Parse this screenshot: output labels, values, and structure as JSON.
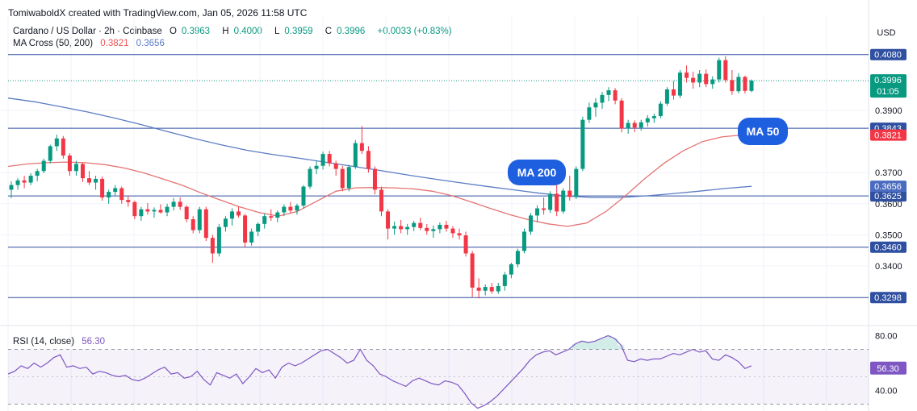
{
  "header": {
    "credit": "TomiwaboldX created with TradingView.com, Jan 05, 2026 11:58 UTC"
  },
  "legend": {
    "symbol": "Cardano / US Dollar · 2h · Coinbase",
    "open_label": "O",
    "open": "0.3963",
    "high_label": "H",
    "high": "0.4000",
    "low_label": "L",
    "low": "0.3959",
    "close_label": "C",
    "close": "0.3996",
    "change": "+0.0033 (+0.83%)",
    "ma_label": "MA Cross (50, 200)",
    "ma50_value": "0.3821",
    "ma200_value": "0.3656",
    "rsi_label": "RSI (14, close)",
    "rsi_value": "56.30"
  },
  "chart_data": {
    "type": "candlestick",
    "currency": "USD",
    "price_axis_ticks": [
      "0.3400",
      "0.3500",
      "0.3600",
      "0.3700",
      "0.3900"
    ],
    "price_range": [
      0.327,
      0.41
    ],
    "horizontal_levels": [
      {
        "price": 0.408,
        "label": "0.4080"
      },
      {
        "price": 0.3843,
        "label": "0.3843"
      },
      {
        "price": 0.3625,
        "label": "0.3625"
      },
      {
        "price": 0.346,
        "label": "0.3460"
      },
      {
        "price": 0.3298,
        "label": "0.3298"
      }
    ],
    "last_price": {
      "value": 0.3996,
      "label": "0.3996",
      "countdown": "01:05"
    },
    "ma50_badge": {
      "value": 0.3821,
      "label": "0.3821"
    },
    "ma200_badge": {
      "value": 0.3656,
      "label": "0.3656"
    },
    "annotations": [
      {
        "text": "MA 200"
      },
      {
        "text": "MA 50"
      }
    ],
    "candles": [
      [
        0.3645,
        0.3672,
        0.3618,
        0.366
      ],
      [
        0.366,
        0.3682,
        0.3645,
        0.3675
      ],
      [
        0.3675,
        0.369,
        0.365,
        0.3668
      ],
      [
        0.3668,
        0.3698,
        0.366,
        0.369
      ],
      [
        0.369,
        0.3712,
        0.3672,
        0.3705
      ],
      [
        0.3705,
        0.3745,
        0.3698,
        0.3738
      ],
      [
        0.3738,
        0.379,
        0.373,
        0.3785
      ],
      [
        0.3785,
        0.3822,
        0.377,
        0.381
      ],
      [
        0.381,
        0.3818,
        0.3745,
        0.3755
      ],
      [
        0.3755,
        0.3762,
        0.369,
        0.3705
      ],
      [
        0.3705,
        0.3738,
        0.369,
        0.3728
      ],
      [
        0.3728,
        0.3732,
        0.367,
        0.3682
      ],
      [
        0.3682,
        0.3705,
        0.366,
        0.3668
      ],
      [
        0.3668,
        0.369,
        0.3645,
        0.368
      ],
      [
        0.368,
        0.3688,
        0.361,
        0.362
      ],
      [
        0.362,
        0.3645,
        0.36,
        0.3638
      ],
      [
        0.3638,
        0.366,
        0.3625,
        0.365
      ],
      [
        0.365,
        0.3655,
        0.36,
        0.3612
      ],
      [
        0.3612,
        0.3625,
        0.359,
        0.3605
      ],
      [
        0.3605,
        0.361,
        0.355,
        0.356
      ],
      [
        0.356,
        0.359,
        0.3545,
        0.3582
      ],
      [
        0.3582,
        0.3602,
        0.3565,
        0.3575
      ],
      [
        0.3575,
        0.3588,
        0.3555,
        0.358
      ],
      [
        0.358,
        0.3598,
        0.3568,
        0.3572
      ],
      [
        0.3572,
        0.36,
        0.356,
        0.359
      ],
      [
        0.359,
        0.3618,
        0.3578,
        0.3606
      ],
      [
        0.3606,
        0.362,
        0.358,
        0.359
      ],
      [
        0.359,
        0.3595,
        0.354,
        0.355
      ],
      [
        0.355,
        0.356,
        0.3505,
        0.3515
      ],
      [
        0.3515,
        0.359,
        0.3505,
        0.3582
      ],
      [
        0.3582,
        0.359,
        0.348,
        0.349
      ],
      [
        0.349,
        0.35,
        0.341,
        0.344
      ],
      [
        0.344,
        0.3535,
        0.343,
        0.3525
      ],
      [
        0.3525,
        0.356,
        0.351,
        0.3552
      ],
      [
        0.3552,
        0.3585,
        0.353,
        0.3575
      ],
      [
        0.3575,
        0.359,
        0.3555,
        0.3562
      ],
      [
        0.3562,
        0.3568,
        0.346,
        0.3475
      ],
      [
        0.3475,
        0.352,
        0.3465,
        0.351
      ],
      [
        0.351,
        0.354,
        0.3495,
        0.3535
      ],
      [
        0.3535,
        0.3568,
        0.352,
        0.356
      ],
      [
        0.356,
        0.3582,
        0.3545,
        0.3555
      ],
      [
        0.3555,
        0.3578,
        0.354,
        0.3572
      ],
      [
        0.3572,
        0.3598,
        0.356,
        0.359
      ],
      [
        0.359,
        0.3605,
        0.357,
        0.3578
      ],
      [
        0.3578,
        0.36,
        0.3565,
        0.3594
      ],
      [
        0.3594,
        0.366,
        0.3585,
        0.3655
      ],
      [
        0.3655,
        0.372,
        0.3648,
        0.3712
      ],
      [
        0.3712,
        0.3738,
        0.3695,
        0.3722
      ],
      [
        0.3722,
        0.3768,
        0.371,
        0.376
      ],
      [
        0.376,
        0.377,
        0.372,
        0.373
      ],
      [
        0.373,
        0.3738,
        0.369,
        0.3712
      ],
      [
        0.3712,
        0.3722,
        0.364,
        0.365
      ],
      [
        0.365,
        0.3725,
        0.364,
        0.3718
      ],
      [
        0.3718,
        0.3805,
        0.3712,
        0.3795
      ],
      [
        0.3795,
        0.385,
        0.376,
        0.377
      ],
      [
        0.377,
        0.3785,
        0.37,
        0.3712
      ],
      [
        0.3712,
        0.372,
        0.363,
        0.3645
      ],
      [
        0.3645,
        0.3655,
        0.356,
        0.3575
      ],
      [
        0.3575,
        0.3582,
        0.3485,
        0.352
      ],
      [
        0.352,
        0.3542,
        0.35,
        0.3528
      ],
      [
        0.3528,
        0.3548,
        0.3505,
        0.3518
      ],
      [
        0.3518,
        0.3535,
        0.35,
        0.3525
      ],
      [
        0.3525,
        0.3545,
        0.3512,
        0.3538
      ],
      [
        0.3538,
        0.3555,
        0.3515,
        0.3522
      ],
      [
        0.3522,
        0.3535,
        0.35,
        0.3512
      ],
      [
        0.3512,
        0.353,
        0.349,
        0.3518
      ],
      [
        0.3518,
        0.354,
        0.3505,
        0.3532
      ],
      [
        0.3532,
        0.3545,
        0.351,
        0.352
      ],
      [
        0.352,
        0.3528,
        0.349,
        0.3505
      ],
      [
        0.3505,
        0.352,
        0.3485,
        0.3498
      ],
      [
        0.3498,
        0.351,
        0.343,
        0.344
      ],
      [
        0.344,
        0.3448,
        0.33,
        0.333
      ],
      [
        0.333,
        0.336,
        0.3295,
        0.332
      ],
      [
        0.332,
        0.334,
        0.3305,
        0.3332
      ],
      [
        0.3332,
        0.3345,
        0.331,
        0.3318
      ],
      [
        0.3318,
        0.3345,
        0.331,
        0.3335
      ],
      [
        0.3335,
        0.338,
        0.332,
        0.3372
      ],
      [
        0.3372,
        0.341,
        0.336,
        0.3405
      ],
      [
        0.3405,
        0.3455,
        0.3395,
        0.3448
      ],
      [
        0.3448,
        0.352,
        0.344,
        0.351
      ],
      [
        0.351,
        0.357,
        0.35,
        0.3562
      ],
      [
        0.3562,
        0.3595,
        0.354,
        0.3585
      ],
      [
        0.3585,
        0.362,
        0.3565,
        0.358
      ],
      [
        0.358,
        0.364,
        0.357,
        0.3632
      ],
      [
        0.3632,
        0.366,
        0.356,
        0.3575
      ],
      [
        0.3575,
        0.365,
        0.3568,
        0.3642
      ],
      [
        0.3642,
        0.369,
        0.361,
        0.3622
      ],
      [
        0.3622,
        0.372,
        0.3615,
        0.3712
      ],
      [
        0.3712,
        0.388,
        0.3705,
        0.387
      ],
      [
        0.387,
        0.3925,
        0.386,
        0.391
      ],
      [
        0.391,
        0.394,
        0.388,
        0.3925
      ],
      [
        0.3925,
        0.396,
        0.3905,
        0.395
      ],
      [
        0.395,
        0.3975,
        0.393,
        0.3965
      ],
      [
        0.3965,
        0.3972,
        0.392,
        0.3932
      ],
      [
        0.3932,
        0.394,
        0.383,
        0.3842
      ],
      [
        0.3842,
        0.387,
        0.3825,
        0.386
      ],
      [
        0.386,
        0.3868,
        0.383,
        0.3845
      ],
      [
        0.3845,
        0.387,
        0.3835,
        0.3862
      ],
      [
        0.3862,
        0.3885,
        0.3848,
        0.3875
      ],
      [
        0.3875,
        0.389,
        0.386,
        0.3882
      ],
      [
        0.3882,
        0.393,
        0.3875,
        0.3922
      ],
      [
        0.3922,
        0.3975,
        0.3915,
        0.3968
      ],
      [
        0.3968,
        0.3995,
        0.3935,
        0.3948
      ],
      [
        0.3948,
        0.403,
        0.394,
        0.4022
      ],
      [
        0.4022,
        0.4045,
        0.399,
        0.4005
      ],
      [
        0.4005,
        0.4025,
        0.397,
        0.399
      ],
      [
        0.399,
        0.403,
        0.3975,
        0.4018
      ],
      [
        0.4018,
        0.4032,
        0.3975,
        0.3985
      ],
      [
        0.3985,
        0.401,
        0.397,
        0.4
      ],
      [
        0.4,
        0.407,
        0.399,
        0.4062
      ],
      [
        0.4062,
        0.4075,
        0.399,
        0.3998
      ],
      [
        0.3998,
        0.403,
        0.395,
        0.3962
      ],
      [
        0.3962,
        0.402,
        0.3955,
        0.4008
      ],
      [
        0.4008,
        0.4012,
        0.3955,
        0.3963
      ],
      [
        0.3963,
        0.4,
        0.3959,
        0.3996
      ]
    ],
    "ma50": [
      0.372,
      0.3728,
      0.3732,
      0.3734,
      0.3732,
      0.3726,
      0.3715,
      0.37,
      0.368,
      0.366,
      0.3635,
      0.3612,
      0.359,
      0.3572,
      0.356,
      0.3575,
      0.3608,
      0.364,
      0.3651,
      0.3652,
      0.3651,
      0.3648,
      0.364,
      0.3626,
      0.3606,
      0.3585,
      0.3565,
      0.3548,
      0.3535,
      0.3527,
      0.3538,
      0.3575,
      0.3625,
      0.368,
      0.373,
      0.377,
      0.38,
      0.3815,
      0.3821
    ],
    "ma200": [
      0.394,
      0.3928,
      0.3912,
      0.3895,
      0.3876,
      0.3855,
      0.3832,
      0.381,
      0.379,
      0.3772,
      0.3758,
      0.3746,
      0.3733,
      0.372,
      0.3707,
      0.3693,
      0.368,
      0.3668,
      0.3656,
      0.3645,
      0.3634,
      0.3625,
      0.362,
      0.362,
      0.3625,
      0.3632,
      0.364,
      0.3649,
      0.3656
    ],
    "rsi": {
      "levels": [
        {
          "value": 80,
          "label": "80.00"
        },
        {
          "value": 40,
          "label": "40.00"
        }
      ],
      "band": [
        70,
        30
      ],
      "range": [
        25,
        85
      ],
      "last": 56.3,
      "values": [
        52,
        54,
        58,
        56,
        60,
        57,
        60,
        64,
        66,
        57,
        58,
        56,
        57,
        52,
        54,
        53,
        51,
        50,
        51,
        48,
        47,
        49,
        52,
        55,
        57,
        52,
        53,
        49,
        50,
        54,
        48,
        44,
        53,
        51,
        49,
        52,
        45,
        50,
        56,
        53,
        55,
        49,
        57,
        60,
        58,
        60,
        63,
        66,
        69,
        70,
        67,
        64,
        60,
        62,
        70,
        62,
        58,
        52,
        50,
        47,
        45,
        43,
        47,
        49,
        47,
        45,
        44,
        47,
        46,
        44,
        38,
        31,
        27,
        29,
        32,
        36,
        41,
        46,
        51,
        56,
        62,
        66,
        68,
        69,
        66,
        68,
        70,
        74,
        76,
        75,
        76,
        78,
        80,
        78,
        73,
        62,
        61,
        63,
        62,
        63,
        63,
        65,
        67,
        66,
        68,
        70,
        68,
        69,
        63,
        62,
        66,
        64,
        61,
        56,
        58
      ]
    }
  }
}
